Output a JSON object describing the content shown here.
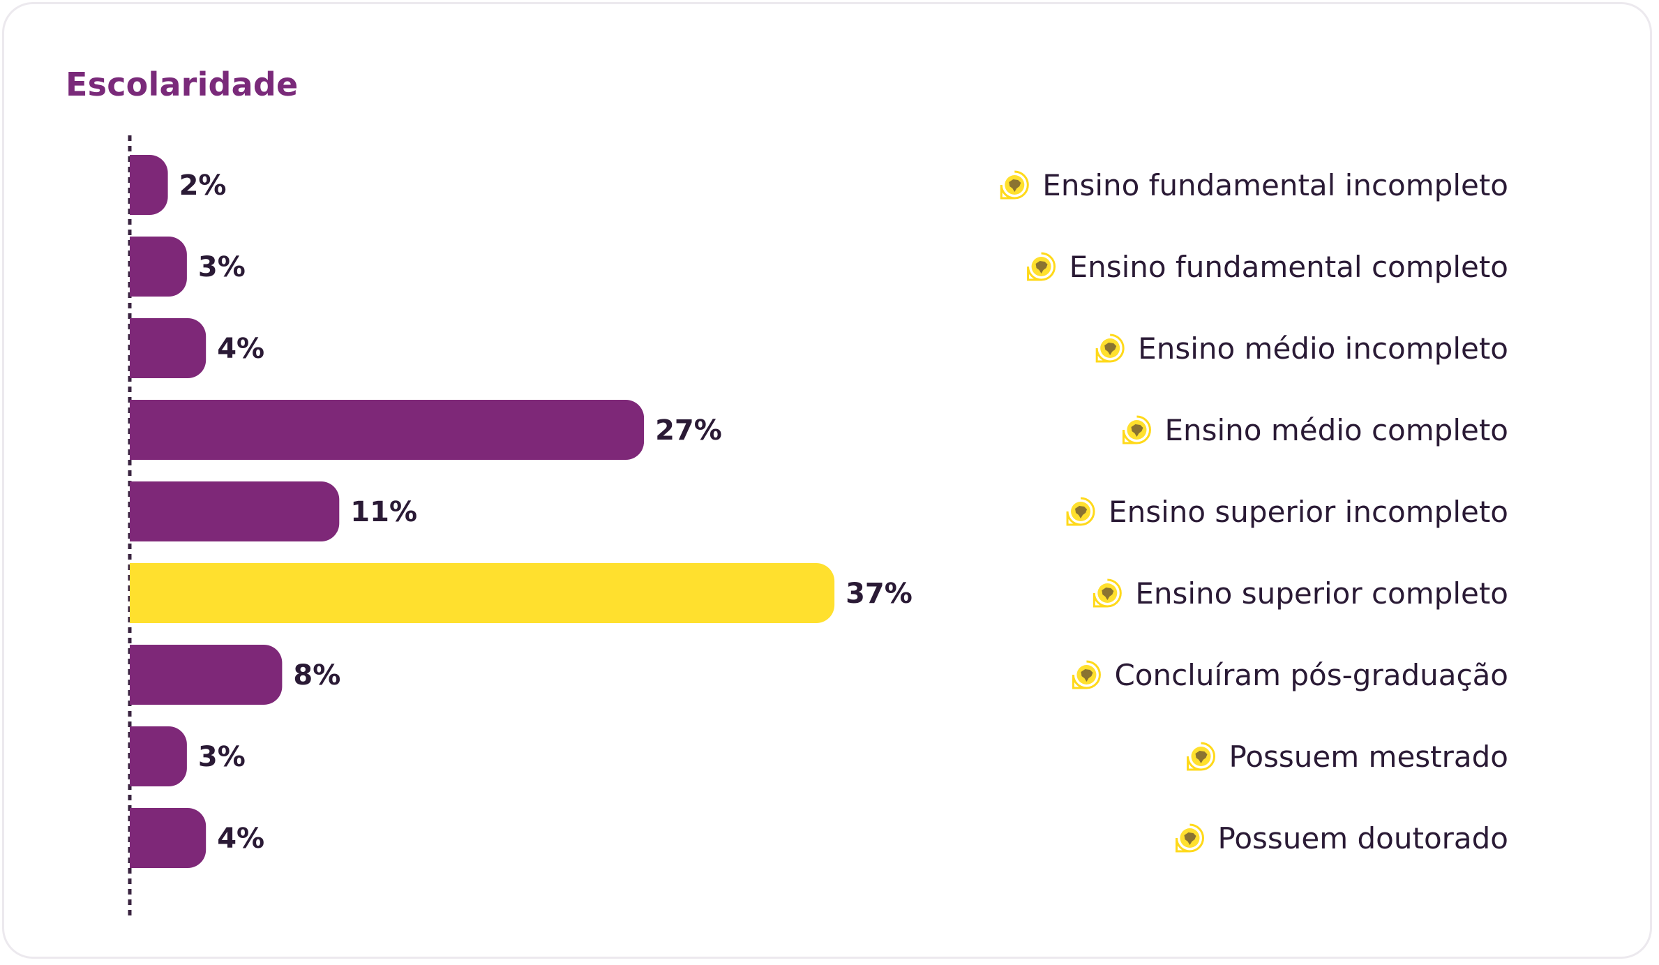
{
  "chart_data": {
    "type": "bar",
    "orientation": "horizontal",
    "title": "Escolaridade",
    "categories": [
      "Ensino fundamental incompleto",
      "Ensino fundamental completo",
      "Ensino médio incompleto",
      "Ensino médio completo",
      "Ensino superior incompleto",
      "Ensino superior completo",
      "Concluíram pós-graduação",
      "Possuem mestrado",
      "Possuem doutorado"
    ],
    "values": [
      2,
      3,
      4,
      27,
      11,
      37,
      8,
      3,
      4
    ],
    "value_labels": [
      "2%",
      "3%",
      "4%",
      "27%",
      "11%",
      "37%",
      "8%",
      "3%",
      "4%"
    ],
    "unit": "%",
    "highlight_index": 5,
    "colors": {
      "bar": "#7e2878",
      "highlight": "#ffe02e",
      "title": "#7a2a7a",
      "text": "#2a1a35",
      "icon": "#ffd91a",
      "axis": "#3a2440"
    },
    "category_icon": "brazil-map-pin-icon",
    "grid": false,
    "legend": "none"
  }
}
